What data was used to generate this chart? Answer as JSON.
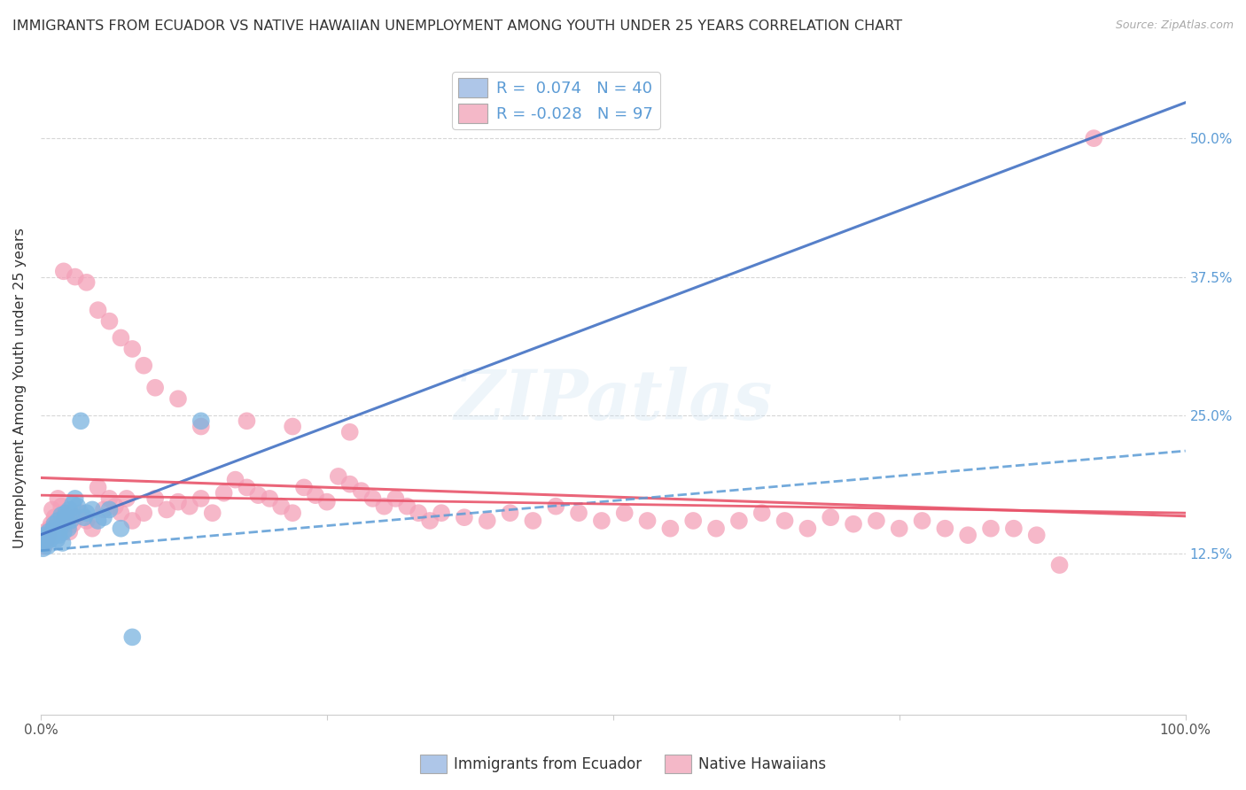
{
  "title": "IMMIGRANTS FROM ECUADOR VS NATIVE HAWAIIAN UNEMPLOYMENT AMONG YOUTH UNDER 25 YEARS CORRELATION CHART",
  "source": "Source: ZipAtlas.com",
  "ylabel": "Unemployment Among Youth under 25 years",
  "xlim": [
    0.0,
    1.0
  ],
  "ylim": [
    -0.02,
    0.57
  ],
  "xticks": [
    0.0,
    0.25,
    0.5,
    0.75,
    1.0
  ],
  "xticklabels": [
    "0.0%",
    "",
    "",
    "",
    "100.0%"
  ],
  "ytick_positions": [
    0.125,
    0.25,
    0.375,
    0.5
  ],
  "ytick_labels": [
    "12.5%",
    "25.0%",
    "37.5%",
    "50.0%"
  ],
  "blue_color": "#7ab3e0",
  "pink_color": "#f4a0b8",
  "trendline_blue_color": "#4472c4",
  "trendline_pink_color": "#e8546a",
  "watermark": "ZIPatlas",
  "background_color": "#ffffff",
  "grid_color": "#cccccc",
  "legend_text1": "R =  0.074   N = 40",
  "legend_text2": "R = -0.028   N = 97",
  "legend_labels_bottom": [
    "Immigrants from Ecuador",
    "Native Hawaiians"
  ],
  "blue_scatter_x": [
    0.001,
    0.002,
    0.003,
    0.004,
    0.005,
    0.006,
    0.007,
    0.008,
    0.009,
    0.01,
    0.011,
    0.012,
    0.013,
    0.014,
    0.015,
    0.016,
    0.017,
    0.018,
    0.019,
    0.02,
    0.021,
    0.022,
    0.023,
    0.024,
    0.025,
    0.026,
    0.027,
    0.028,
    0.03,
    0.032,
    0.035,
    0.038,
    0.04,
    0.045,
    0.05,
    0.055,
    0.06,
    0.07,
    0.08,
    0.14
  ],
  "blue_scatter_y": [
    0.135,
    0.13,
    0.138,
    0.142,
    0.14,
    0.132,
    0.145,
    0.138,
    0.142,
    0.14,
    0.148,
    0.152,
    0.145,
    0.138,
    0.155,
    0.142,
    0.148,
    0.16,
    0.135,
    0.145,
    0.158,
    0.162,
    0.155,
    0.148,
    0.165,
    0.155,
    0.16,
    0.17,
    0.175,
    0.168,
    0.245,
    0.158,
    0.162,
    0.165,
    0.155,
    0.158,
    0.165,
    0.148,
    0.05,
    0.245
  ],
  "pink_scatter_x": [
    0.001,
    0.002,
    0.003,
    0.004,
    0.005,
    0.006,
    0.007,
    0.008,
    0.009,
    0.01,
    0.012,
    0.015,
    0.018,
    0.02,
    0.022,
    0.025,
    0.028,
    0.03,
    0.035,
    0.04,
    0.045,
    0.05,
    0.055,
    0.06,
    0.065,
    0.07,
    0.075,
    0.08,
    0.09,
    0.1,
    0.11,
    0.12,
    0.13,
    0.14,
    0.15,
    0.16,
    0.17,
    0.18,
    0.19,
    0.2,
    0.21,
    0.22,
    0.23,
    0.24,
    0.25,
    0.26,
    0.27,
    0.28,
    0.29,
    0.3,
    0.31,
    0.32,
    0.33,
    0.34,
    0.35,
    0.37,
    0.39,
    0.41,
    0.43,
    0.45,
    0.47,
    0.49,
    0.51,
    0.53,
    0.55,
    0.57,
    0.59,
    0.61,
    0.63,
    0.65,
    0.67,
    0.69,
    0.71,
    0.73,
    0.75,
    0.77,
    0.79,
    0.81,
    0.83,
    0.85,
    0.87,
    0.89,
    0.02,
    0.03,
    0.04,
    0.05,
    0.06,
    0.07,
    0.08,
    0.09,
    0.1,
    0.12,
    0.14,
    0.18,
    0.22,
    0.27,
    0.92
  ],
  "pink_scatter_y": [
    0.135,
    0.14,
    0.132,
    0.145,
    0.138,
    0.142,
    0.14,
    0.148,
    0.152,
    0.165,
    0.158,
    0.175,
    0.168,
    0.162,
    0.155,
    0.145,
    0.152,
    0.158,
    0.162,
    0.155,
    0.148,
    0.185,
    0.165,
    0.175,
    0.168,
    0.162,
    0.175,
    0.155,
    0.162,
    0.175,
    0.165,
    0.172,
    0.168,
    0.175,
    0.162,
    0.18,
    0.192,
    0.185,
    0.178,
    0.175,
    0.168,
    0.162,
    0.185,
    0.178,
    0.172,
    0.195,
    0.188,
    0.182,
    0.175,
    0.168,
    0.175,
    0.168,
    0.162,
    0.155,
    0.162,
    0.158,
    0.155,
    0.162,
    0.155,
    0.168,
    0.162,
    0.155,
    0.162,
    0.155,
    0.148,
    0.155,
    0.148,
    0.155,
    0.162,
    0.155,
    0.148,
    0.158,
    0.152,
    0.155,
    0.148,
    0.155,
    0.148,
    0.142,
    0.148,
    0.148,
    0.142,
    0.115,
    0.38,
    0.375,
    0.37,
    0.345,
    0.335,
    0.32,
    0.31,
    0.295,
    0.275,
    0.265,
    0.24,
    0.245,
    0.24,
    0.235,
    0.5
  ]
}
